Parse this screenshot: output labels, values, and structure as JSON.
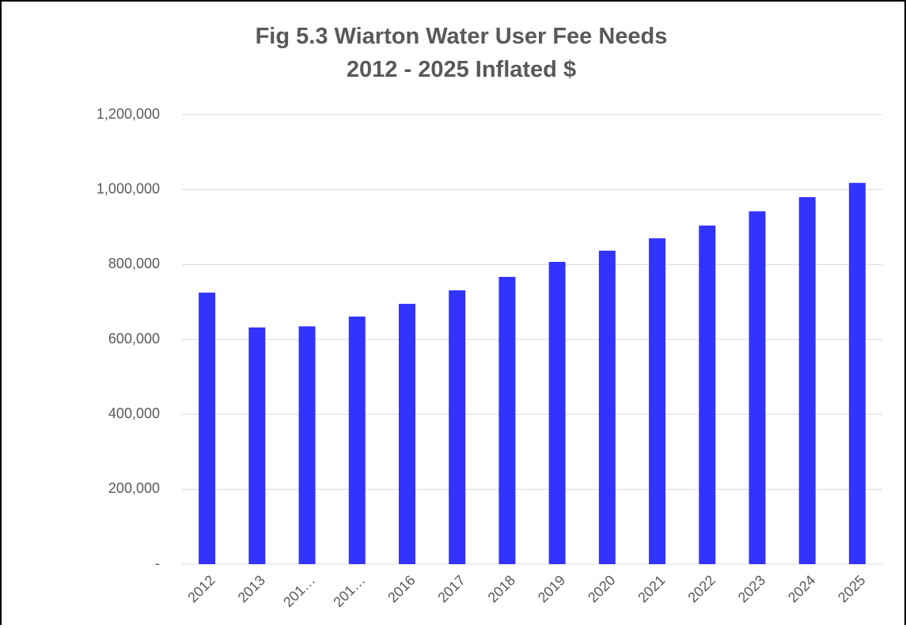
{
  "chart_data": {
    "type": "bar",
    "title": [
      "Fig 5.3  Wiarton Water User Fee Needs",
      "2012 - 2025 Inflated $"
    ],
    "categories": [
      "2012",
      "2013",
      "201…",
      "201…",
      "2016",
      "2017",
      "2018",
      "2019",
      "2020",
      "2021",
      "2022",
      "2023",
      "2024",
      "2025"
    ],
    "values": [
      725000,
      632000,
      635000,
      661000,
      695000,
      731000,
      767000,
      807000,
      837000,
      870000,
      904000,
      942000,
      980000,
      1018000
    ],
    "color": "#3333ff",
    "ylim": [
      0,
      1200000
    ],
    "yticks": [
      {
        "value": 0,
        "label": "-"
      },
      {
        "value": 200000,
        "label": "200,000"
      },
      {
        "value": 400000,
        "label": "400,000"
      },
      {
        "value": 600000,
        "label": "600,000"
      },
      {
        "value": 800000,
        "label": "800,000"
      },
      {
        "value": 1000000,
        "label": "1,000,000"
      },
      {
        "value": 1200000,
        "label": "1,200,000"
      }
    ],
    "grid": true
  }
}
